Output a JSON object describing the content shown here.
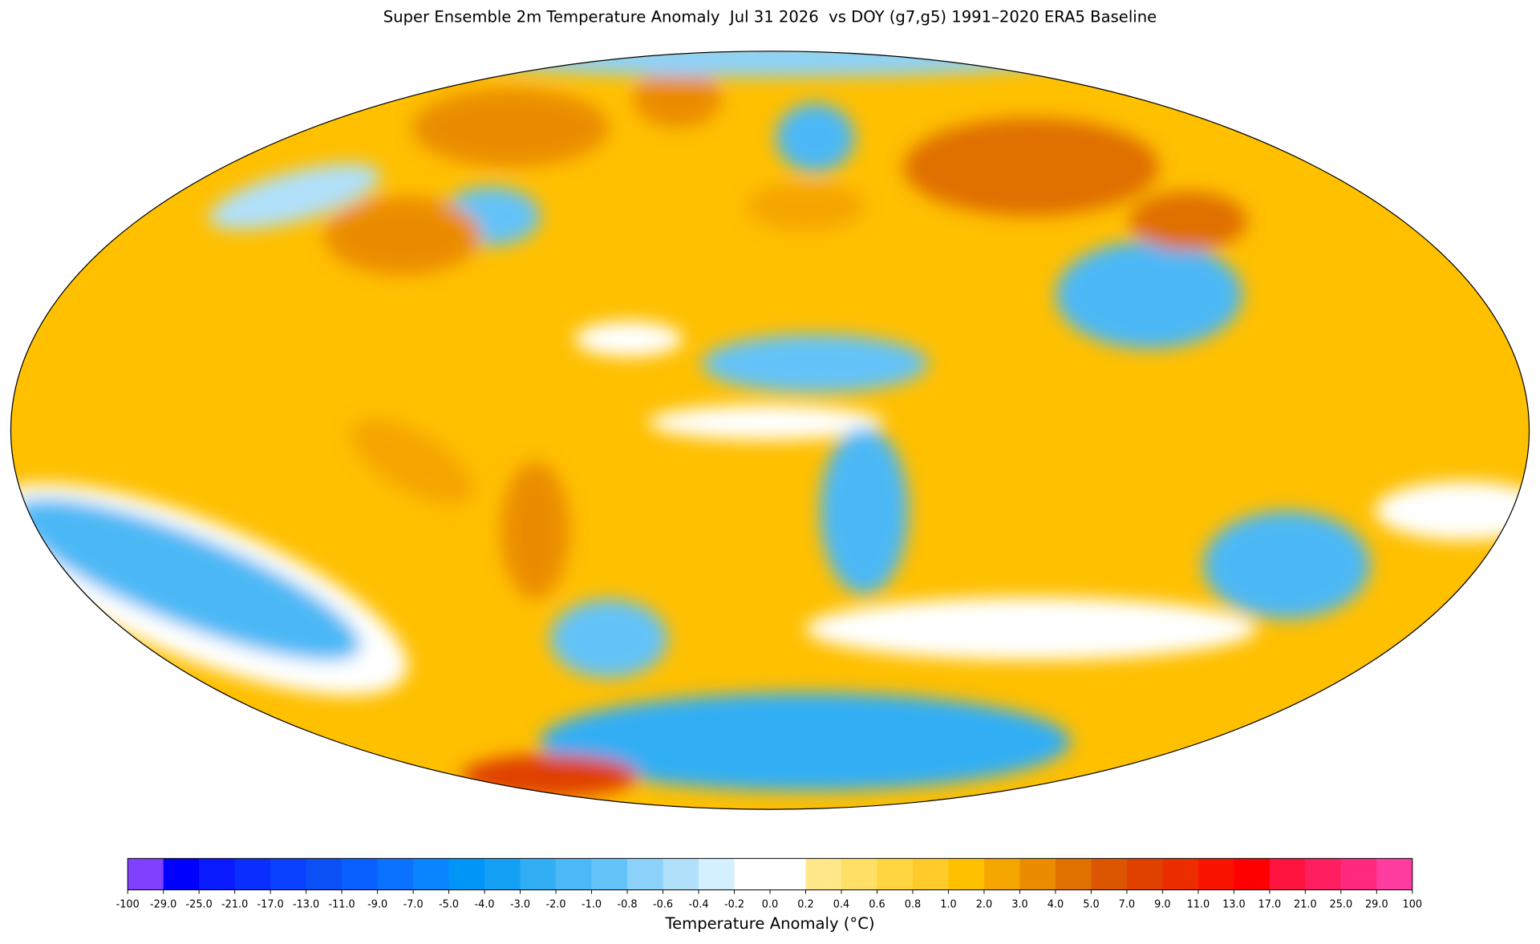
{
  "title": "Super Ensemble 2m Temperature Anomaly  Jul 31 2026  vs DOY (g7,g5) 1991–2020 ERA5 Baseline",
  "colorbar": {
    "label": "Temperature Anomaly (°C)",
    "ticks": [
      -100,
      {
        "value": -29,
        "label": "-29.0"
      },
      {
        "value": -25,
        "label": "-25.0"
      },
      {
        "value": -21,
        "label": "-21.0"
      },
      {
        "value": -17,
        "label": "-17.0"
      },
      {
        "value": -13,
        "label": "-13.0"
      },
      {
        "value": -11,
        "label": "-11.0"
      },
      {
        "value": -9,
        "label": "-9.0"
      },
      {
        "value": -7,
        "label": "-7.0"
      },
      {
        "value": -5,
        "label": "-5.0"
      },
      {
        "value": -4,
        "label": "-4.0"
      },
      {
        "value": -3,
        "label": "-3.0"
      },
      {
        "value": -2,
        "label": "-2.0"
      },
      {
        "value": -1,
        "label": "-1.0"
      },
      -0.8,
      -0.6,
      -0.4,
      -0.2,
      {
        "value": 0,
        "label": "0.0"
      },
      0.2,
      0.4,
      0.6,
      0.8,
      {
        "value": 1,
        "label": "1.0"
      },
      {
        "value": 2,
        "label": "2.0"
      },
      {
        "value": 3,
        "label": "3.0"
      },
      {
        "value": 4,
        "label": "4.0"
      },
      {
        "value": 5,
        "label": "5.0"
      },
      {
        "value": 7,
        "label": "7.0"
      },
      {
        "value": 9,
        "label": "9.0"
      },
      {
        "value": 11,
        "label": "11.0"
      },
      {
        "value": 13,
        "label": "13.0"
      },
      {
        "value": 17,
        "label": "17.0"
      },
      {
        "value": 21,
        "label": "21.0"
      },
      {
        "value": 25,
        "label": "25.0"
      },
      {
        "value": 29,
        "label": "29.0"
      },
      100
    ],
    "colors": [
      "#8040ff",
      "#0000ff",
      "#0a1cff",
      "#0a2eff",
      "#0a40ff",
      "#0a50f5",
      "#0a60ff",
      "#0a72ff",
      "#0a84ff",
      "#0096f8",
      "#14a0f5",
      "#32aef5",
      "#4cb8f5",
      "#64c3f8",
      "#8cd2fa",
      "#b0e0fa",
      "#d4efff",
      "#ffffff",
      "#ffffff",
      "#ffe78a",
      "#ffdf66",
      "#ffd640",
      "#ffcb2a",
      "#ffc000",
      "#f5a500",
      "#eb8c00",
      "#e07000",
      "#dc5500",
      "#e04000",
      "#eb2d00",
      "#fa1400",
      "#ff0000",
      "#ff1440",
      "#ff1f60",
      "#ff2a80",
      "#ff3ca0"
    ]
  }
}
